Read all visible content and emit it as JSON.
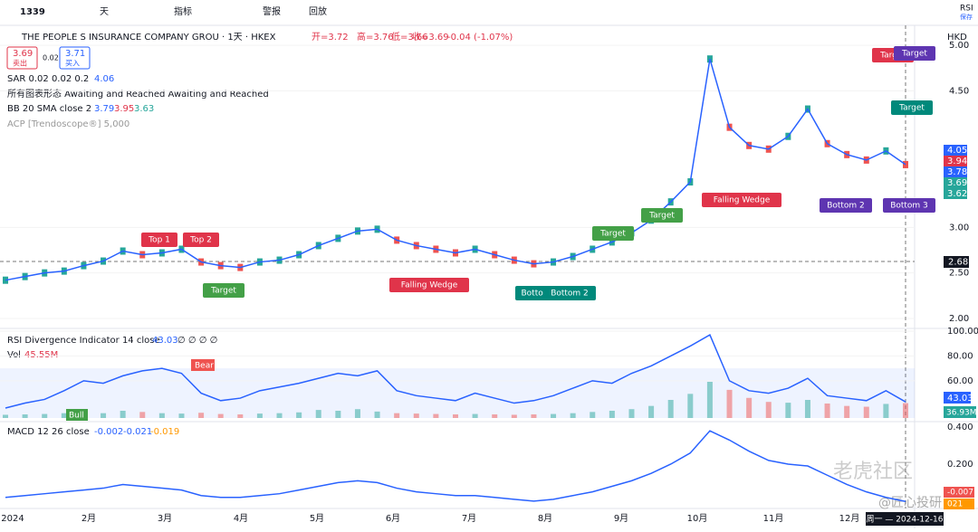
{
  "toolbar": {
    "symbol": "1339",
    "interval": "天",
    "indicators": "指标",
    "alert": "警报",
    "replay": "回放",
    "rsi": "RSI",
    "save": "保存"
  },
  "legend": {
    "name": "THE PEOPLE S INSURANCE COMPANY GROU · 1天 · HKEX",
    "open": "开=3.72",
    "high": "高=3.76",
    "low": "低=3.66",
    "close": "收=3.69",
    "change": "-0.04 (-1.07%)",
    "sell_price": "3.69",
    "sell": "卖出",
    "spread": "0.02",
    "buy_price": "3.71",
    "buy": "买入",
    "sar": "SAR 0.02 0.02 0.2",
    "sar_value": "4.06",
    "patterns": "所有图表形态 Awaiting and Reached Awaiting and Reached",
    "bb": "BB 20 SMA close 2",
    "bb_values": [
      "3.79",
      "3.95",
      "3.63"
    ],
    "acp": "ACP [Trendoscope®] 5,000"
  },
  "currency": "HKD",
  "price": {
    "ylim": [
      1.9,
      5.2
    ],
    "yticks": [
      "5.00",
      "4.50",
      "3.00",
      "2.50",
      "2.00"
    ],
    "ytick_values": [
      5,
      4.5,
      3,
      2.5,
      2
    ],
    "price_labels": [
      {
        "label": "4.05",
        "color": "#2962ff"
      },
      {
        "label": "3.94",
        "color": "#e0344a"
      },
      {
        "label": "3.78",
        "color": "#2962ff"
      },
      {
        "label": "3.69",
        "color": "#26a69a"
      },
      {
        "label": "3.62",
        "color": "#26a69a"
      }
    ],
    "crosshair": "2.68",
    "closes": [
      2.42,
      2.46,
      2.5,
      2.52,
      2.58,
      2.63,
      2.74,
      2.7,
      2.72,
      2.76,
      2.62,
      2.58,
      2.56,
      2.62,
      2.64,
      2.7,
      2.8,
      2.88,
      2.96,
      2.98,
      2.86,
      2.8,
      2.76,
      2.72,
      2.76,
      2.7,
      2.64,
      2.6,
      2.62,
      2.68,
      2.76,
      2.84,
      2.94,
      3.08,
      3.28,
      3.5,
      4.85,
      4.1,
      3.9,
      3.86,
      4.0,
      4.3,
      3.92,
      3.8,
      3.74,
      3.84,
      3.69
    ],
    "annotations": [
      "Top 1",
      "Top 2",
      "Target",
      "Falling Wedge",
      "Bottom",
      "Bottom 2",
      "Target",
      "Target",
      "Falling Wedge",
      "Bottom 2",
      "Bottom 3",
      "Target",
      "Target",
      "Target"
    ]
  },
  "rsi": {
    "title": "RSI Divergence Indicator 14 close",
    "value": "43.03",
    "nulls": "∅ ∅ ∅ ∅",
    "vol_title": "Vol",
    "vol_value": "45.55M",
    "vol_label": "36.93M",
    "ylim": [
      30,
      100
    ],
    "yticks": [
      "100.00",
      "80.00",
      "60.00"
    ],
    "ytick_values": [
      100,
      80,
      60
    ],
    "bear": "Bear",
    "bull": "Bull",
    "values": [
      38,
      42,
      45,
      52,
      60,
      58,
      64,
      68,
      70,
      66,
      50,
      44,
      46,
      52,
      55,
      58,
      62,
      66,
      64,
      68,
      52,
      48,
      46,
      44,
      50,
      46,
      42,
      44,
      48,
      54,
      60,
      58,
      66,
      72,
      80,
      88,
      97,
      60,
      52,
      50,
      54,
      62,
      48,
      46,
      44,
      52,
      43
    ],
    "volume": [
      8,
      9,
      10,
      12,
      14,
      12,
      18,
      15,
      12,
      11,
      13,
      10,
      9,
      11,
      12,
      14,
      20,
      18,
      22,
      16,
      12,
      11,
      10,
      9,
      10,
      9,
      8,
      9,
      10,
      12,
      15,
      18,
      22,
      30,
      45,
      60,
      90,
      70,
      50,
      40,
      38,
      45,
      36,
      30,
      28,
      35,
      37
    ]
  },
  "macd": {
    "title": "MACD 12 26 close",
    "values_text": [
      "-0.002",
      "-0.021",
      "-0.019"
    ],
    "ylim": [
      -0.03,
      0.42
    ],
    "yticks": [
      "0.400",
      "0.200"
    ],
    "ytick_values": [
      0.4,
      0.2
    ],
    "labels": [
      "-0.007",
      "021"
    ],
    "line": [
      0.02,
      0.03,
      0.04,
      0.05,
      0.06,
      0.07,
      0.09,
      0.08,
      0.07,
      0.06,
      0.03,
      0.02,
      0.02,
      0.03,
      0.04,
      0.06,
      0.08,
      0.1,
      0.11,
      0.1,
      0.07,
      0.05,
      0.04,
      0.03,
      0.03,
      0.02,
      0.01,
      0.0,
      0.01,
      0.03,
      0.05,
      0.08,
      0.11,
      0.15,
      0.2,
      0.26,
      0.38,
      0.33,
      0.27,
      0.22,
      0.2,
      0.19,
      0.14,
      0.09,
      0.05,
      0.02,
      -0.002
    ]
  },
  "xaxis": {
    "labels": [
      "2024",
      "2月",
      "3月",
      "4月",
      "5月",
      "6月",
      "7月",
      "8月",
      "9月",
      "10月",
      "11月",
      "12月"
    ],
    "crosshair": "周一 — 2024-12-16"
  },
  "watermark": [
    "老虎社区",
    "@匠心投研"
  ]
}
